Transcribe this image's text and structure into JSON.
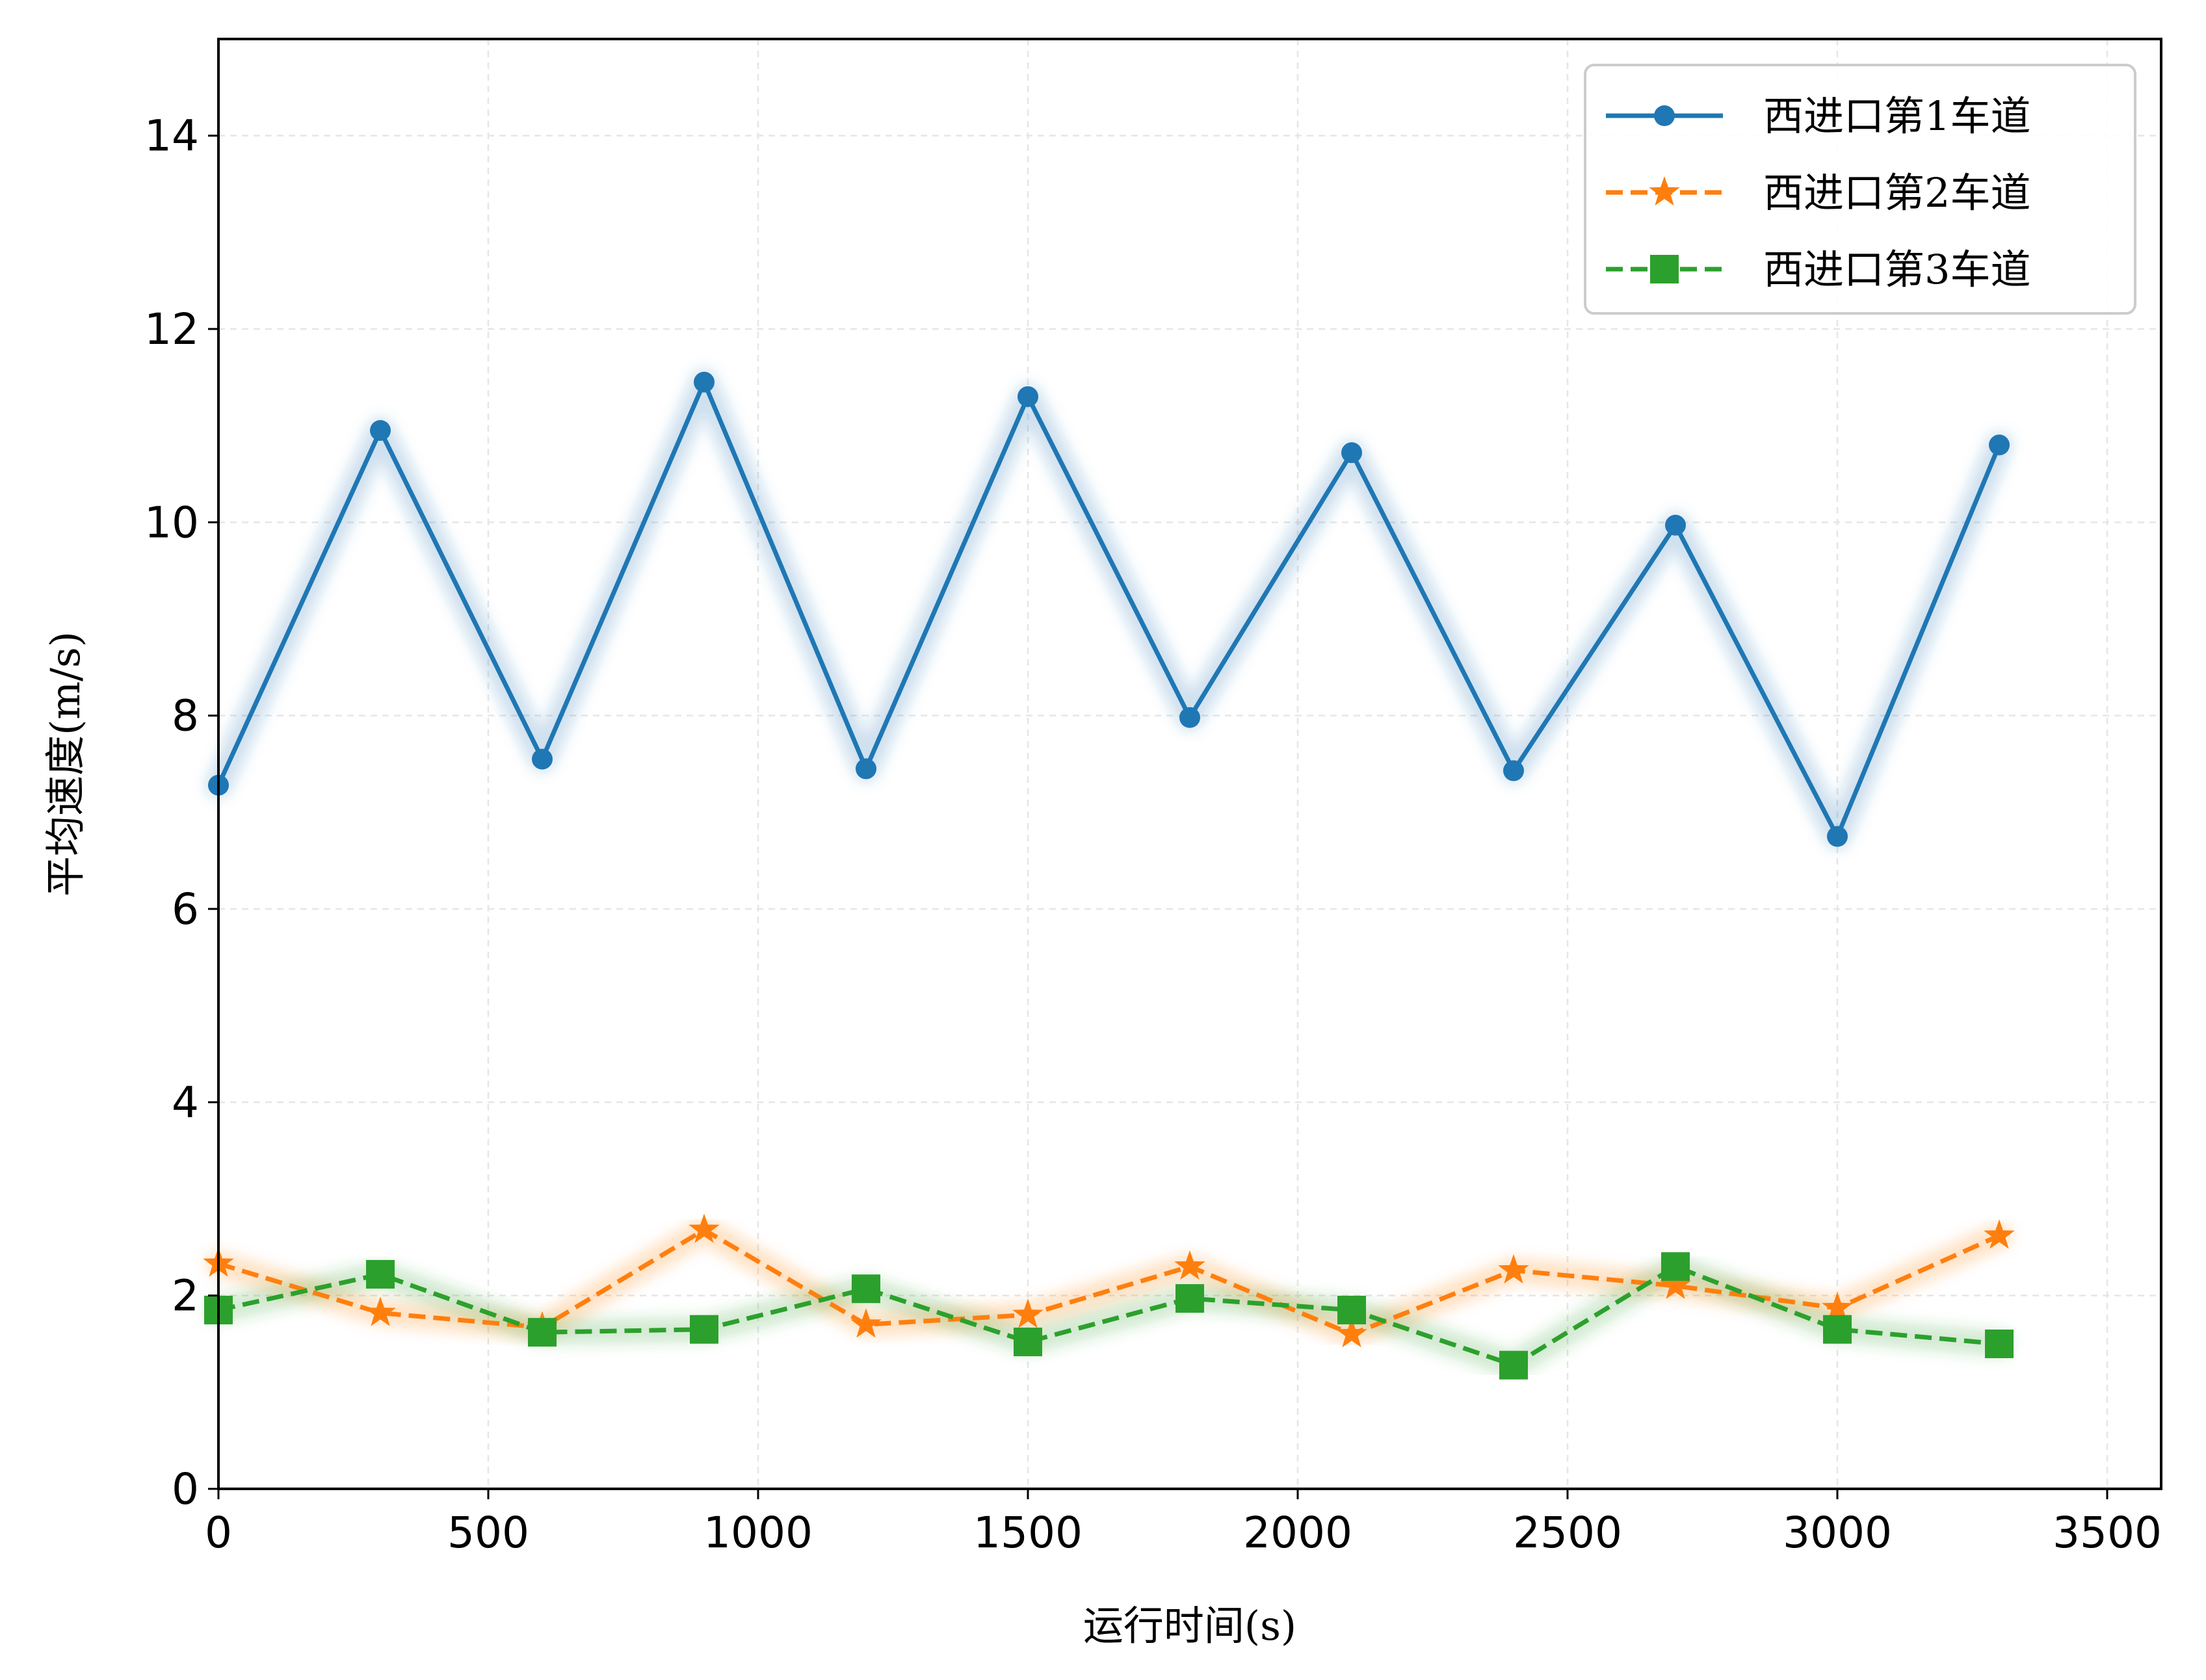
{
  "chart_data": {
    "type": "line",
    "xlabel": "运行时间(s)",
    "ylabel": "平均速度(m/s)",
    "xlim": [
      0,
      3600
    ],
    "ylim": [
      0,
      15
    ],
    "xticks": [
      0,
      500,
      1000,
      1500,
      2000,
      2500,
      3000,
      3500
    ],
    "yticks": [
      0,
      2,
      4,
      6,
      8,
      10,
      12,
      14
    ],
    "grid": true,
    "legend_position": "top-right",
    "x": [
      0,
      300,
      600,
      900,
      1200,
      1500,
      1800,
      2100,
      2400,
      2700,
      3000,
      3300
    ],
    "series": [
      {
        "name": "西进口第1车道",
        "color": "#1f77b4",
        "marker": "circle",
        "line_style": "solid",
        "values": [
          7.28,
          10.95,
          7.55,
          11.45,
          7.45,
          11.3,
          7.98,
          10.72,
          7.43,
          9.97,
          6.75,
          10.8
        ]
      },
      {
        "name": "西进口第2车道",
        "color": "#ff7f0e",
        "marker": "star",
        "line_style": "dashed",
        "values": [
          2.33,
          1.82,
          1.67,
          2.68,
          1.7,
          1.8,
          2.3,
          1.6,
          2.26,
          2.1,
          1.87,
          2.62
        ]
      },
      {
        "name": "西进口第3车道",
        "color": "#2ca02c",
        "marker": "square",
        "line_style": "dashed",
        "values": [
          1.85,
          2.22,
          1.62,
          1.65,
          2.07,
          1.52,
          1.97,
          1.85,
          1.28,
          2.3,
          1.65,
          1.5
        ]
      }
    ]
  }
}
